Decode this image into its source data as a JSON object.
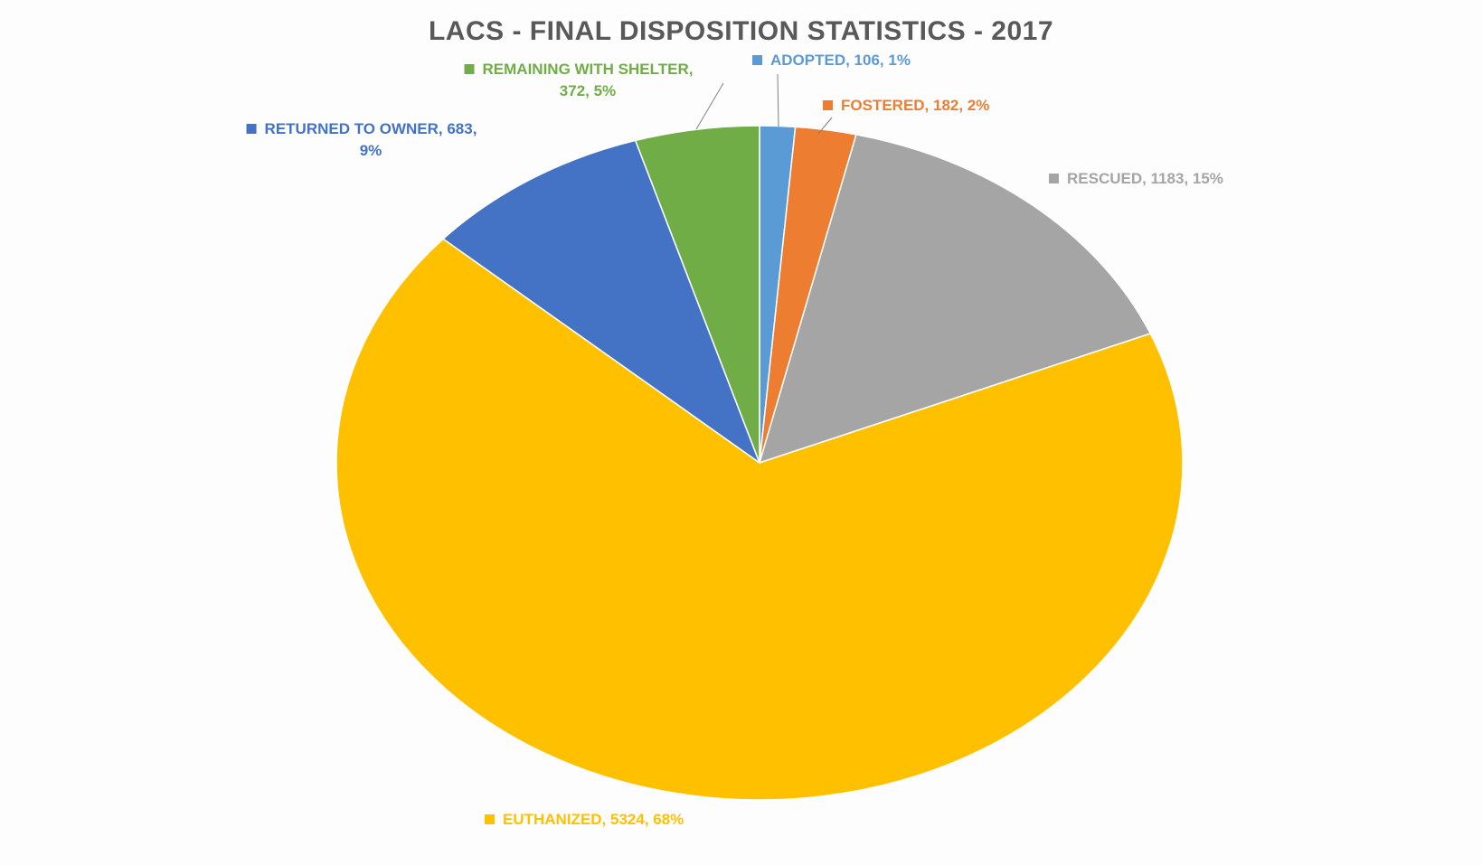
{
  "chart_data": {
    "type": "pie",
    "title": "LACS - FINAL DISPOSITION STATISTICS - 2017",
    "slices": [
      {
        "name": "ADOPTED",
        "value": 106,
        "percent": "1%",
        "color": "#5b9bd5",
        "label_lines": [
          "ADOPTED, 106, 1%"
        ]
      },
      {
        "name": "FOSTERED",
        "value": 182,
        "percent": "2%",
        "color": "#ed7d31",
        "label_lines": [
          "FOSTERED, 182, 2%"
        ]
      },
      {
        "name": "RESCUED",
        "value": 1183,
        "percent": "15%",
        "color": "#a5a5a5",
        "label_lines": [
          "RESCUED, 1183, 15%"
        ]
      },
      {
        "name": "EUTHANIZED",
        "value": 5324,
        "percent": "68%",
        "color": "#ffc000",
        "label_lines": [
          "EUTHANIZED, 5324, 68%"
        ]
      },
      {
        "name": "RETURNED TO OWNER",
        "value": 683,
        "percent": "9%",
        "color": "#4472c4",
        "label_lines": [
          "RETURNED TO OWNER, 683,",
          "9%"
        ]
      },
      {
        "name": "REMAINING WITH SHELTER",
        "value": 372,
        "percent": "5%",
        "color": "#70ad47",
        "label_lines": [
          "REMAINING WITH SHELTER,",
          "372, 5%"
        ]
      }
    ],
    "start_angle": "12 o'clock",
    "direction": "clockwise",
    "legend": "none",
    "data_labels": "outside with series-colored markers"
  }
}
